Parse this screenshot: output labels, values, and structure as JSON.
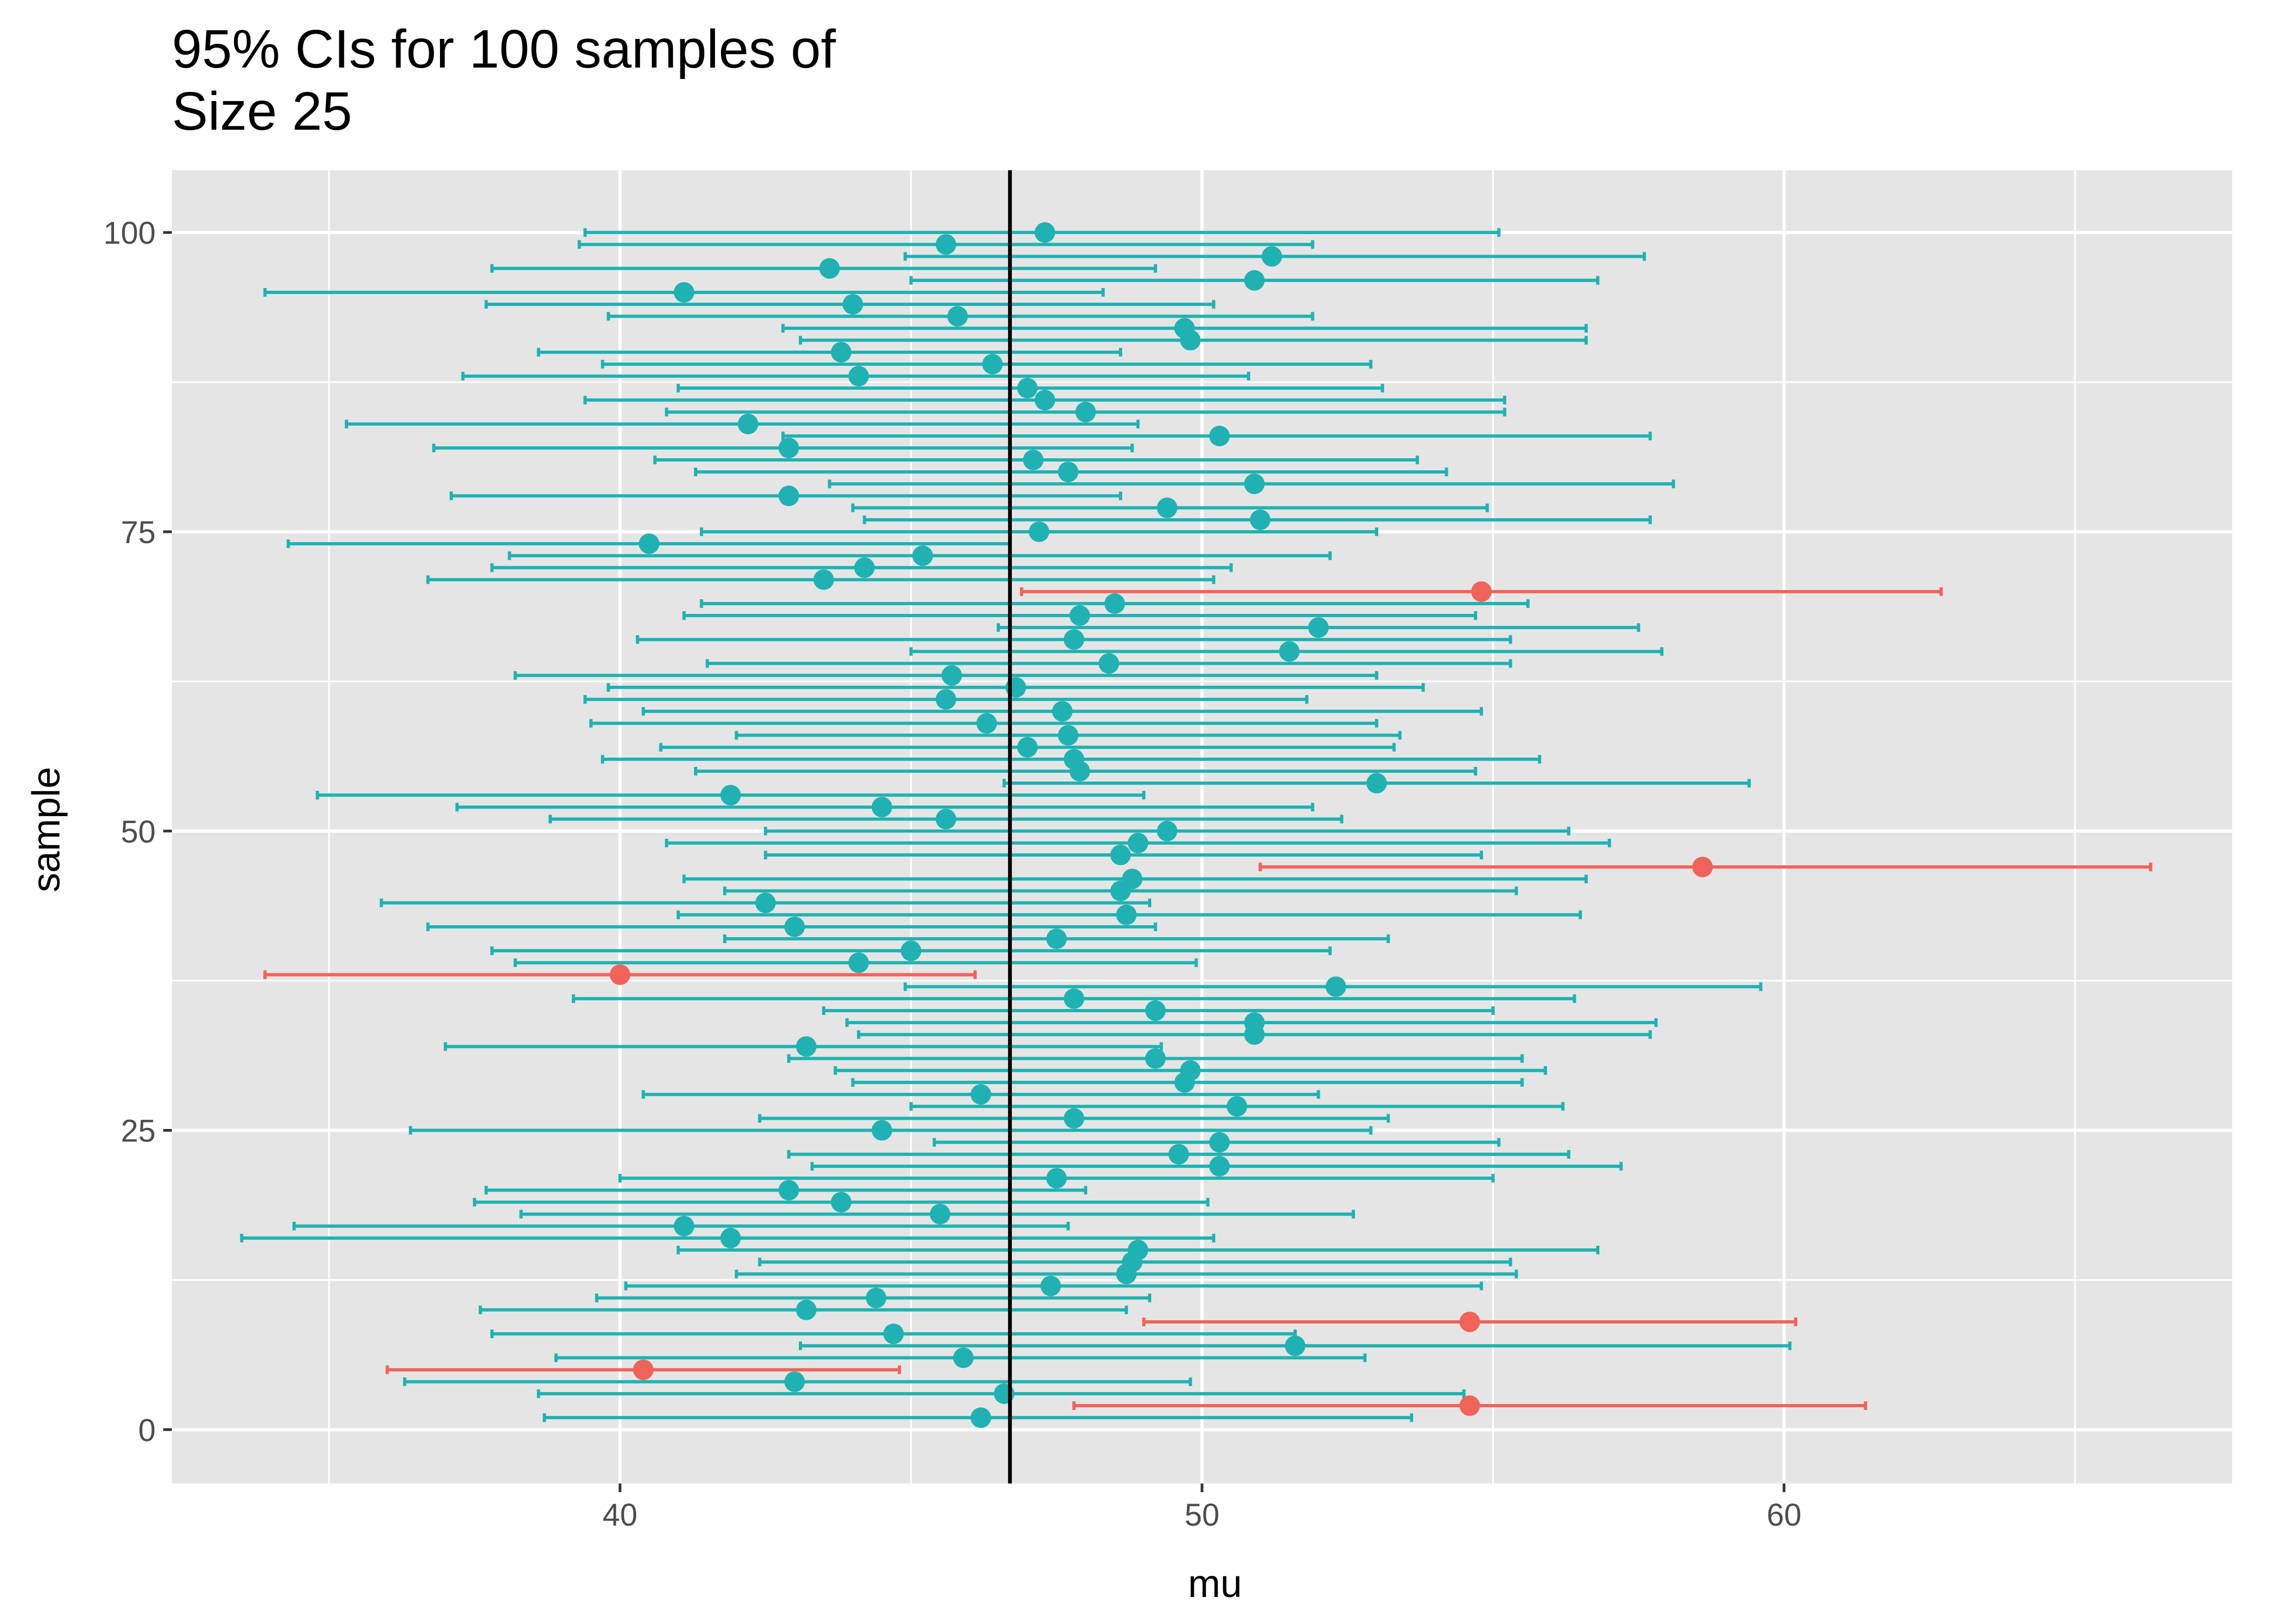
{
  "chart_data": {
    "type": "errorbar",
    "title_lines": [
      "95% CIs for 100 samples of",
      "Size 25"
    ],
    "xlabel": "mu",
    "ylabel": "sample",
    "xlim": [
      32.3,
      67.7
    ],
    "ylim": [
      -4.5,
      105.2
    ],
    "x_ticks": [
      40,
      50,
      60
    ],
    "x_minor_ticks": [
      35,
      45,
      55,
      65
    ],
    "y_ticks": [
      0,
      25,
      50,
      75,
      100
    ],
    "y_minor_ticks": [
      12.5,
      37.5,
      62.5,
      87.5
    ],
    "reference_line_x": 46.7,
    "grid": true,
    "panel_background": "#e5e5e5",
    "colors": {
      "covers": "#20b2b2",
      "misses": "#f0635a",
      "reference": "#000000"
    },
    "intervals": [
      {
        "sample": 1,
        "estimate": 46.2,
        "lower": 38.7,
        "upper": 53.6,
        "covers": true
      },
      {
        "sample": 2,
        "estimate": 54.6,
        "lower": 47.8,
        "upper": 61.4,
        "covers": false
      },
      {
        "sample": 3,
        "estimate": 46.6,
        "lower": 38.6,
        "upper": 54.5,
        "covers": true
      },
      {
        "sample": 4,
        "estimate": 43.0,
        "lower": 36.3,
        "upper": 49.8,
        "covers": true
      },
      {
        "sample": 5,
        "estimate": 40.4,
        "lower": 36.0,
        "upper": 44.8,
        "covers": false
      },
      {
        "sample": 6,
        "estimate": 45.9,
        "lower": 38.9,
        "upper": 52.8,
        "covers": true
      },
      {
        "sample": 7,
        "estimate": 51.6,
        "lower": 43.1,
        "upper": 60.1,
        "covers": true
      },
      {
        "sample": 8,
        "estimate": 44.7,
        "lower": 37.8,
        "upper": 51.6,
        "covers": true
      },
      {
        "sample": 9,
        "estimate": 54.6,
        "lower": 49.0,
        "upper": 60.2,
        "covers": false
      },
      {
        "sample": 10,
        "estimate": 43.2,
        "lower": 37.6,
        "upper": 48.7,
        "covers": true
      },
      {
        "sample": 11,
        "estimate": 44.4,
        "lower": 39.6,
        "upper": 49.1,
        "covers": true
      },
      {
        "sample": 12,
        "estimate": 47.4,
        "lower": 40.1,
        "upper": 54.8,
        "covers": true
      },
      {
        "sample": 13,
        "estimate": 48.7,
        "lower": 42.0,
        "upper": 55.4,
        "covers": true
      },
      {
        "sample": 14,
        "estimate": 48.8,
        "lower": 42.4,
        "upper": 55.3,
        "covers": true
      },
      {
        "sample": 15,
        "estimate": 48.9,
        "lower": 41.0,
        "upper": 56.8,
        "covers": true
      },
      {
        "sample": 16,
        "estimate": 41.9,
        "lower": 33.5,
        "upper": 50.2,
        "covers": true
      },
      {
        "sample": 17,
        "estimate": 41.1,
        "lower": 34.4,
        "upper": 47.7,
        "covers": true
      },
      {
        "sample": 18,
        "estimate": 45.5,
        "lower": 38.3,
        "upper": 52.6,
        "covers": true
      },
      {
        "sample": 19,
        "estimate": 43.8,
        "lower": 37.5,
        "upper": 50.1,
        "covers": true
      },
      {
        "sample": 20,
        "estimate": 42.9,
        "lower": 37.7,
        "upper": 48.0,
        "covers": true
      },
      {
        "sample": 21,
        "estimate": 47.5,
        "lower": 40.0,
        "upper": 55.0,
        "covers": true
      },
      {
        "sample": 22,
        "estimate": 50.3,
        "lower": 43.3,
        "upper": 57.2,
        "covers": true
      },
      {
        "sample": 23,
        "estimate": 49.6,
        "lower": 42.9,
        "upper": 56.3,
        "covers": true
      },
      {
        "sample": 24,
        "estimate": 50.3,
        "lower": 45.4,
        "upper": 55.1,
        "covers": true
      },
      {
        "sample": 25,
        "estimate": 44.5,
        "lower": 36.4,
        "upper": 52.9,
        "covers": true
      },
      {
        "sample": 26,
        "estimate": 47.8,
        "lower": 42.4,
        "upper": 53.2,
        "covers": true
      },
      {
        "sample": 27,
        "estimate": 50.6,
        "lower": 45.0,
        "upper": 56.2,
        "covers": true
      },
      {
        "sample": 28,
        "estimate": 46.2,
        "lower": 40.4,
        "upper": 52.0,
        "covers": true
      },
      {
        "sample": 29,
        "estimate": 49.7,
        "lower": 44.0,
        "upper": 55.5,
        "covers": true
      },
      {
        "sample": 30,
        "estimate": 49.8,
        "lower": 43.7,
        "upper": 55.9,
        "covers": true
      },
      {
        "sample": 31,
        "estimate": 49.2,
        "lower": 42.9,
        "upper": 55.5,
        "covers": true
      },
      {
        "sample": 32,
        "estimate": 43.2,
        "lower": 37.0,
        "upper": 49.3,
        "covers": true
      },
      {
        "sample": 33,
        "estimate": 50.9,
        "lower": 44.1,
        "upper": 57.7,
        "covers": true
      },
      {
        "sample": 34,
        "estimate": 50.9,
        "lower": 43.9,
        "upper": 57.8,
        "covers": true
      },
      {
        "sample": 35,
        "estimate": 49.2,
        "lower": 43.5,
        "upper": 55.0,
        "covers": true
      },
      {
        "sample": 36,
        "estimate": 47.8,
        "lower": 39.2,
        "upper": 56.4,
        "covers": true
      },
      {
        "sample": 37,
        "estimate": 52.3,
        "lower": 44.9,
        "upper": 59.6,
        "covers": true
      },
      {
        "sample": 38,
        "estimate": 40.0,
        "lower": 33.9,
        "upper": 46.1,
        "covers": false
      },
      {
        "sample": 39,
        "estimate": 44.1,
        "lower": 38.2,
        "upper": 49.9,
        "covers": true
      },
      {
        "sample": 40,
        "estimate": 45.0,
        "lower": 37.8,
        "upper": 52.2,
        "covers": true
      },
      {
        "sample": 41,
        "estimate": 47.5,
        "lower": 41.8,
        "upper": 53.2,
        "covers": true
      },
      {
        "sample": 42,
        "estimate": 43.0,
        "lower": 36.7,
        "upper": 49.2,
        "covers": true
      },
      {
        "sample": 43,
        "estimate": 48.7,
        "lower": 41.0,
        "upper": 56.5,
        "covers": true
      },
      {
        "sample": 44,
        "estimate": 42.5,
        "lower": 35.9,
        "upper": 49.1,
        "covers": true
      },
      {
        "sample": 45,
        "estimate": 48.6,
        "lower": 41.8,
        "upper": 55.4,
        "covers": true
      },
      {
        "sample": 46,
        "estimate": 48.8,
        "lower": 41.1,
        "upper": 56.6,
        "covers": true
      },
      {
        "sample": 47,
        "estimate": 58.6,
        "lower": 51.0,
        "upper": 66.3,
        "covers": false
      },
      {
        "sample": 48,
        "estimate": 48.6,
        "lower": 42.5,
        "upper": 54.8,
        "covers": true
      },
      {
        "sample": 49,
        "estimate": 48.9,
        "lower": 40.8,
        "upper": 57.0,
        "covers": true
      },
      {
        "sample": 50,
        "estimate": 49.4,
        "lower": 42.5,
        "upper": 56.3,
        "covers": true
      },
      {
        "sample": 51,
        "estimate": 45.6,
        "lower": 38.8,
        "upper": 52.4,
        "covers": true
      },
      {
        "sample": 52,
        "estimate": 44.5,
        "lower": 37.2,
        "upper": 51.9,
        "covers": true
      },
      {
        "sample": 53,
        "estimate": 41.9,
        "lower": 34.8,
        "upper": 49.0,
        "covers": true
      },
      {
        "sample": 54,
        "estimate": 53.0,
        "lower": 46.6,
        "upper": 59.4,
        "covers": true
      },
      {
        "sample": 55,
        "estimate": 47.9,
        "lower": 41.3,
        "upper": 54.7,
        "covers": true
      },
      {
        "sample": 56,
        "estimate": 47.8,
        "lower": 39.7,
        "upper": 55.8,
        "covers": true
      },
      {
        "sample": 57,
        "estimate": 47.0,
        "lower": 40.7,
        "upper": 53.3,
        "covers": true
      },
      {
        "sample": 58,
        "estimate": 47.7,
        "lower": 42.0,
        "upper": 53.4,
        "covers": true
      },
      {
        "sample": 59,
        "estimate": 46.3,
        "lower": 39.5,
        "upper": 53.0,
        "covers": true
      },
      {
        "sample": 60,
        "estimate": 47.6,
        "lower": 40.4,
        "upper": 54.8,
        "covers": true
      },
      {
        "sample": 61,
        "estimate": 45.6,
        "lower": 39.4,
        "upper": 51.8,
        "covers": true
      },
      {
        "sample": 62,
        "estimate": 46.8,
        "lower": 39.8,
        "upper": 53.8,
        "covers": true
      },
      {
        "sample": 63,
        "estimate": 45.7,
        "lower": 38.2,
        "upper": 53.0,
        "covers": true
      },
      {
        "sample": 64,
        "estimate": 48.4,
        "lower": 41.5,
        "upper": 55.3,
        "covers": true
      },
      {
        "sample": 65,
        "estimate": 51.5,
        "lower": 45.0,
        "upper": 57.9,
        "covers": true
      },
      {
        "sample": 66,
        "estimate": 47.8,
        "lower": 40.3,
        "upper": 55.3,
        "covers": true
      },
      {
        "sample": 67,
        "estimate": 52.0,
        "lower": 46.5,
        "upper": 57.5,
        "covers": true
      },
      {
        "sample": 68,
        "estimate": 47.9,
        "lower": 41.1,
        "upper": 54.7,
        "covers": true
      },
      {
        "sample": 69,
        "estimate": 48.5,
        "lower": 41.4,
        "upper": 55.6,
        "covers": true
      },
      {
        "sample": 70,
        "estimate": 54.8,
        "lower": 46.9,
        "upper": 62.7,
        "covers": false
      },
      {
        "sample": 71,
        "estimate": 43.5,
        "lower": 36.7,
        "upper": 50.2,
        "covers": true
      },
      {
        "sample": 72,
        "estimate": 44.2,
        "lower": 37.8,
        "upper": 50.5,
        "covers": true
      },
      {
        "sample": 73,
        "estimate": 45.2,
        "lower": 38.1,
        "upper": 52.2,
        "covers": true
      },
      {
        "sample": 74,
        "estimate": 40.5,
        "lower": 34.3,
        "upper": 46.7,
        "covers": true
      },
      {
        "sample": 75,
        "estimate": 47.2,
        "lower": 41.4,
        "upper": 53.0,
        "covers": true
      },
      {
        "sample": 76,
        "estimate": 51.0,
        "lower": 44.2,
        "upper": 57.7,
        "covers": true
      },
      {
        "sample": 77,
        "estimate": 49.4,
        "lower": 44.0,
        "upper": 54.9,
        "covers": true
      },
      {
        "sample": 78,
        "estimate": 42.9,
        "lower": 37.1,
        "upper": 48.6,
        "covers": true
      },
      {
        "sample": 79,
        "estimate": 50.9,
        "lower": 43.6,
        "upper": 58.1,
        "covers": true
      },
      {
        "sample": 80,
        "estimate": 47.7,
        "lower": 41.3,
        "upper": 54.2,
        "covers": true
      },
      {
        "sample": 81,
        "estimate": 47.1,
        "lower": 40.6,
        "upper": 53.7,
        "covers": true
      },
      {
        "sample": 82,
        "estimate": 42.9,
        "lower": 36.8,
        "upper": 48.8,
        "covers": true
      },
      {
        "sample": 83,
        "estimate": 50.3,
        "lower": 42.8,
        "upper": 57.7,
        "covers": true
      },
      {
        "sample": 84,
        "estimate": 42.2,
        "lower": 35.3,
        "upper": 48.9,
        "covers": true
      },
      {
        "sample": 85,
        "estimate": 48.0,
        "lower": 40.8,
        "upper": 55.2,
        "covers": true
      },
      {
        "sample": 86,
        "estimate": 47.3,
        "lower": 39.4,
        "upper": 55.2,
        "covers": true
      },
      {
        "sample": 87,
        "estimate": 47.0,
        "lower": 41.0,
        "upper": 53.1,
        "covers": true
      },
      {
        "sample": 88,
        "estimate": 44.1,
        "lower": 37.3,
        "upper": 50.8,
        "covers": true
      },
      {
        "sample": 89,
        "estimate": 46.4,
        "lower": 39.7,
        "upper": 52.9,
        "covers": true
      },
      {
        "sample": 90,
        "estimate": 43.8,
        "lower": 38.6,
        "upper": 48.6,
        "covers": true
      },
      {
        "sample": 91,
        "estimate": 49.8,
        "lower": 43.1,
        "upper": 56.6,
        "covers": true
      },
      {
        "sample": 92,
        "estimate": 49.7,
        "lower": 42.8,
        "upper": 56.6,
        "covers": true
      },
      {
        "sample": 93,
        "estimate": 45.8,
        "lower": 39.8,
        "upper": 51.9,
        "covers": true
      },
      {
        "sample": 94,
        "estimate": 44.0,
        "lower": 37.7,
        "upper": 50.2,
        "covers": true
      },
      {
        "sample": 95,
        "estimate": 41.1,
        "lower": 33.9,
        "upper": 48.3,
        "covers": true
      },
      {
        "sample": 96,
        "estimate": 50.9,
        "lower": 45.0,
        "upper": 56.8,
        "covers": true
      },
      {
        "sample": 97,
        "estimate": 43.6,
        "lower": 37.8,
        "upper": 49.2,
        "covers": true
      },
      {
        "sample": 98,
        "estimate": 51.2,
        "lower": 44.9,
        "upper": 57.6,
        "covers": true
      },
      {
        "sample": 99,
        "estimate": 45.6,
        "lower": 39.3,
        "upper": 51.9,
        "covers": true
      },
      {
        "sample": 100,
        "estimate": 47.3,
        "lower": 39.4,
        "upper": 55.1,
        "covers": true
      }
    ]
  }
}
